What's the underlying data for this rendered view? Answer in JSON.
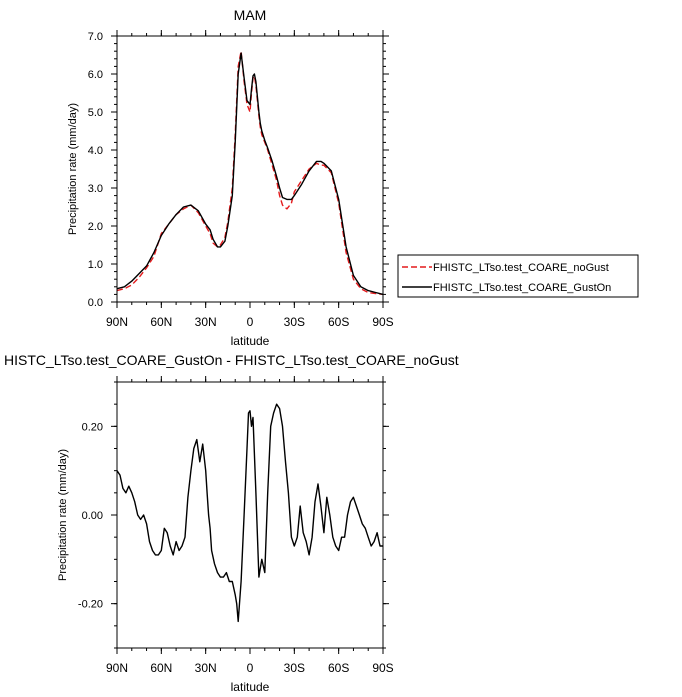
{
  "colors": {
    "noGust": "#e41a1c",
    "gustOn": "#000000"
  },
  "chart_data": [
    {
      "type": "line",
      "title": "MAM",
      "xlabel": "latitude",
      "ylabel": "Precipitation rate (mm/day)",
      "xlim": [
        90,
        -90
      ],
      "ylim": [
        0,
        7
      ],
      "x_ticks": [
        {
          "v": 90,
          "label": "90N"
        },
        {
          "v": 60,
          "label": "60N"
        },
        {
          "v": 30,
          "label": "30N"
        },
        {
          "v": 0,
          "label": "0"
        },
        {
          "v": -30,
          "label": "30S"
        },
        {
          "v": -60,
          "label": "60S"
        },
        {
          "v": -90,
          "label": "90S"
        }
      ],
      "y_ticks": [
        {
          "v": 0,
          "label": "0.0"
        },
        {
          "v": 1,
          "label": "1.0"
        },
        {
          "v": 2,
          "label": "2.0"
        },
        {
          "v": 3,
          "label": "3.0"
        },
        {
          "v": 4,
          "label": "4.0"
        },
        {
          "v": 5,
          "label": "5.0"
        },
        {
          "v": 6,
          "label": "6.0"
        },
        {
          "v": 7,
          "label": "7.0"
        }
      ],
      "legend_position": "right",
      "series": [
        {
          "name": "FHISTC_LTso.test_COARE_noGust",
          "color_key": "noGust",
          "dash": true,
          "x": [
            90,
            85,
            80,
            75,
            70,
            65,
            60,
            55,
            50,
            45,
            40,
            35,
            30,
            27,
            25,
            22,
            20,
            17,
            15,
            12,
            10,
            8,
            6,
            4,
            2,
            0,
            -1,
            -2,
            -3,
            -4,
            -5,
            -6,
            -7,
            -8,
            -10,
            -12,
            -15,
            -18,
            -20,
            -22,
            -25,
            -28,
            -30,
            -35,
            -40,
            -45,
            -48,
            -50,
            -55,
            -60,
            -65,
            -70,
            -75,
            -80,
            -85,
            -90
          ],
          "y": [
            0.3,
            0.35,
            0.45,
            0.65,
            0.9,
            1.2,
            1.8,
            2.05,
            2.3,
            2.45,
            2.55,
            2.35,
            2.0,
            1.8,
            1.55,
            1.45,
            1.5,
            1.7,
            2.1,
            3.0,
            4.4,
            6.2,
            6.6,
            5.8,
            5.2,
            5.0,
            5.5,
            5.9,
            5.95,
            5.7,
            5.3,
            4.9,
            4.6,
            4.4,
            4.2,
            4.0,
            3.6,
            3.2,
            2.8,
            2.55,
            2.45,
            2.6,
            2.9,
            3.2,
            3.5,
            3.65,
            3.6,
            3.6,
            3.4,
            2.6,
            1.3,
            0.6,
            0.35,
            0.25,
            0.22,
            0.2
          ]
        },
        {
          "name": "FHISTC_LTso.test_COARE_GustOn",
          "color_key": "gustOn",
          "dash": false,
          "x": [
            90,
            85,
            80,
            75,
            70,
            65,
            60,
            55,
            50,
            45,
            40,
            35,
            30,
            27,
            25,
            22,
            20,
            17,
            15,
            12,
            10,
            8,
            6,
            4,
            2,
            0,
            -1,
            -2,
            -3,
            -4,
            -5,
            -6,
            -7,
            -8,
            -10,
            -12,
            -15,
            -18,
            -20,
            -22,
            -25,
            -28,
            -30,
            -35,
            -40,
            -45,
            -48,
            -50,
            -55,
            -60,
            -65,
            -70,
            -75,
            -80,
            -85,
            -90
          ],
          "y": [
            0.35,
            0.4,
            0.55,
            0.75,
            0.95,
            1.3,
            1.75,
            2.05,
            2.3,
            2.5,
            2.55,
            2.4,
            2.05,
            1.9,
            1.65,
            1.45,
            1.45,
            1.6,
            2.0,
            2.8,
            4.2,
            6.0,
            6.55,
            5.9,
            5.3,
            5.2,
            5.6,
            5.95,
            6.0,
            5.8,
            5.4,
            5.0,
            4.7,
            4.5,
            4.25,
            4.05,
            3.7,
            3.3,
            3.0,
            2.75,
            2.7,
            2.7,
            2.8,
            3.1,
            3.45,
            3.7,
            3.7,
            3.65,
            3.45,
            2.7,
            1.45,
            0.7,
            0.4,
            0.3,
            0.25,
            0.2
          ]
        }
      ]
    },
    {
      "type": "line",
      "title": "HISTC_LTso.test_COARE_GustOn - FHISTC_LTso.test_COARE_noGust",
      "xlabel": "latitude",
      "ylabel": "Precipitation rate (mm/day)",
      "xlim": [
        90,
        -90
      ],
      "ylim": [
        -0.3,
        0.3
      ],
      "x_ticks": [
        {
          "v": 90,
          "label": "90N"
        },
        {
          "v": 60,
          "label": "60N"
        },
        {
          "v": 30,
          "label": "30N"
        },
        {
          "v": 0,
          "label": "0"
        },
        {
          "v": -30,
          "label": "30S"
        },
        {
          "v": -60,
          "label": "60S"
        },
        {
          "v": -90,
          "label": "90S"
        }
      ],
      "y_ticks": [
        {
          "v": -0.2,
          "label": "-0.20"
        },
        {
          "v": 0,
          "label": "0.00"
        },
        {
          "v": 0.2,
          "label": "0.20"
        }
      ],
      "series": [
        {
          "color_key": "gustOn",
          "dash": false,
          "x": [
            90,
            88,
            86,
            84,
            82,
            80,
            78,
            76,
            74,
            72,
            70,
            68,
            66,
            64,
            62,
            60,
            58,
            56,
            54,
            52,
            50,
            48,
            46,
            44,
            42,
            40,
            38,
            36,
            34,
            32,
            30,
            29,
            28,
            27,
            26,
            24,
            22,
            20,
            18,
            16,
            14,
            12,
            10,
            9,
            8,
            6,
            4,
            2,
            1,
            0,
            -1,
            -2,
            -4,
            -6,
            -7,
            -8,
            -10,
            -12,
            -14,
            -16,
            -18,
            -20,
            -22,
            -24,
            -26,
            -28,
            -30,
            -32,
            -34,
            -36,
            -38,
            -40,
            -42,
            -44,
            -46,
            -48,
            -50,
            -52,
            -54,
            -56,
            -58,
            -60,
            -62,
            -64,
            -66,
            -68,
            -70,
            -72,
            -74,
            -76,
            -78,
            -80,
            -82,
            -84,
            -86,
            -88,
            -90
          ],
          "y": [
            0.1,
            0.09,
            0.06,
            0.05,
            0.065,
            0.05,
            0.03,
            0.0,
            -0.01,
            0.0,
            -0.02,
            -0.06,
            -0.08,
            -0.09,
            -0.09,
            -0.08,
            -0.03,
            -0.04,
            -0.07,
            -0.09,
            -0.06,
            -0.08,
            -0.07,
            -0.05,
            0.04,
            0.1,
            0.15,
            0.17,
            0.12,
            0.16,
            0.1,
            0.05,
            0.0,
            -0.03,
            -0.08,
            -0.11,
            -0.13,
            -0.14,
            -0.14,
            -0.13,
            -0.15,
            -0.15,
            -0.18,
            -0.2,
            -0.24,
            -0.15,
            0.0,
            0.15,
            0.23,
            0.235,
            0.2,
            0.22,
            0.05,
            -0.14,
            -0.12,
            -0.1,
            -0.13,
            0.05,
            0.2,
            0.23,
            0.25,
            0.24,
            0.2,
            0.12,
            0.05,
            -0.05,
            -0.07,
            -0.05,
            0.02,
            -0.04,
            -0.06,
            -0.09,
            -0.05,
            0.03,
            0.07,
            0.02,
            -0.04,
            0.04,
            0.0,
            -0.05,
            -0.07,
            -0.08,
            -0.05,
            -0.05,
            0.0,
            0.03,
            0.04,
            0.02,
            0.0,
            -0.02,
            -0.03,
            -0.05,
            -0.07,
            -0.06,
            -0.04,
            -0.07,
            -0.07
          ]
        }
      ]
    }
  ]
}
